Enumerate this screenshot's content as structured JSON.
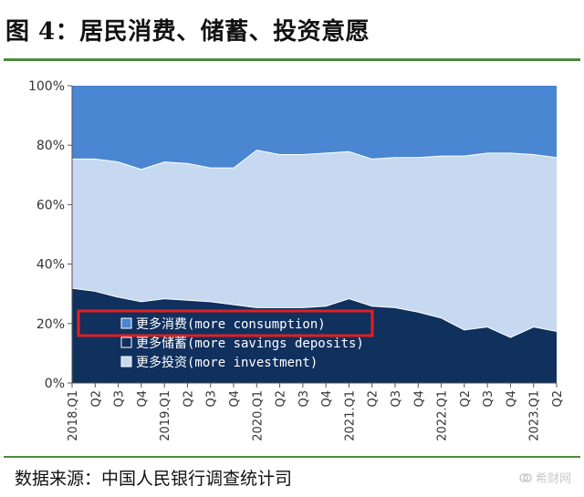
{
  "header": {
    "title": "图 4：居民消费、储蓄、投资意愿"
  },
  "footer": {
    "source": "数据来源：中国人民银行调查统计司",
    "watermark": "希财网"
  },
  "colors": {
    "consumption": "#4a86d1",
    "savings": "#10305e",
    "investment": "#c6d9f1",
    "highlight_box": "#e02020",
    "rule": "#4b8b3b"
  },
  "icons": {
    "watermark": "logo-icon"
  },
  "chart_data": {
    "type": "area",
    "stacked": true,
    "percent": true,
    "categories": [
      "2018.Q1",
      "Q2",
      "Q3",
      "Q4",
      "2019.Q1",
      "Q2",
      "Q3",
      "Q4",
      "2020.Q1",
      "Q2",
      "Q3",
      "Q4",
      "2021.Q1",
      "Q2",
      "Q3",
      "Q4",
      "2022.Q1",
      "Q2",
      "Q3",
      "Q4",
      "2023.Q1",
      "Q2"
    ],
    "series": [
      {
        "name": "更多储蓄(more savings deposits)",
        "key": "savings",
        "values": [
          32.0,
          31.0,
          29.0,
          27.5,
          28.5,
          28.0,
          27.5,
          26.5,
          25.5,
          25.5,
          25.5,
          26.0,
          28.5,
          26.0,
          25.5,
          24.0,
          22.0,
          18.0,
          19.0,
          15.5,
          19.0,
          17.5
        ]
      },
      {
        "name": "更多投资(more investment)",
        "key": "investment",
        "values": [
          43.5,
          44.5,
          45.5,
          44.5,
          46.0,
          46.0,
          45.0,
          46.0,
          53.0,
          51.5,
          51.5,
          51.5,
          49.5,
          49.5,
          50.5,
          52.0,
          54.5,
          58.5,
          58.5,
          62.0,
          58.0,
          58.5
        ]
      },
      {
        "name": "更多消费(more consumption)",
        "key": "consumption",
        "values": [
          24.5,
          24.5,
          25.5,
          28.0,
          25.5,
          26.0,
          27.5,
          27.5,
          21.5,
          23.0,
          23.0,
          22.5,
          22.0,
          24.5,
          24.0,
          24.0,
          23.5,
          23.5,
          22.5,
          22.5,
          23.0,
          24.0
        ]
      }
    ],
    "y_ticks": [
      "0%",
      "20%",
      "40%",
      "60%",
      "80%",
      "100%"
    ],
    "ylim": [
      0,
      100
    ],
    "legend": {
      "position": "lower-left",
      "order": [
        "consumption",
        "savings",
        "investment"
      ],
      "highlighted": "consumption"
    },
    "grid": false
  }
}
